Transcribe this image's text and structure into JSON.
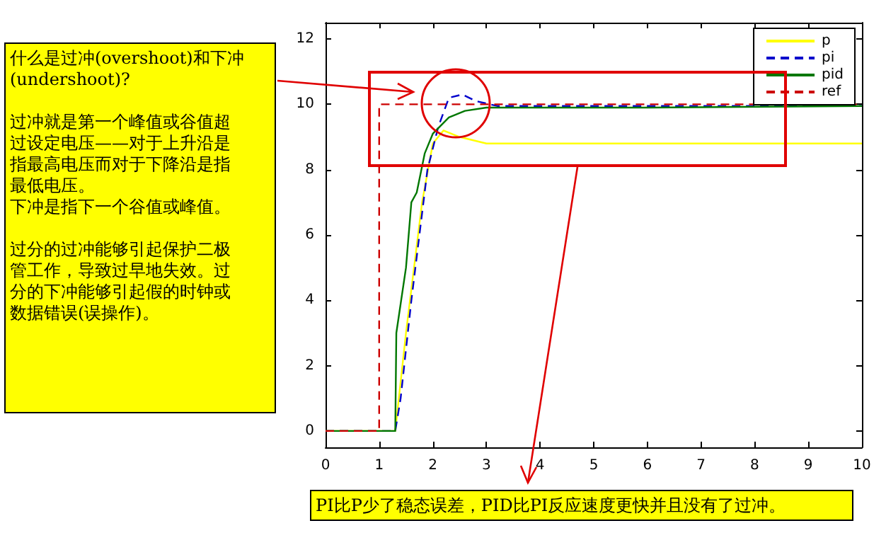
{
  "chart_data": {
    "type": "line",
    "xlim": [
      0,
      10
    ],
    "xticks": [
      0,
      1,
      2,
      3,
      4,
      5,
      6,
      7,
      8,
      9,
      10
    ],
    "ylim": [
      -0.5,
      12.5
    ],
    "yticks": [
      0,
      2,
      4,
      6,
      8,
      10,
      12
    ],
    "grid": false,
    "legend": "top right",
    "marker": "none",
    "series": [
      {
        "name": "p",
        "color": "#ffff00",
        "line_style": "solid",
        "x": [
          0,
          1.3,
          1.5,
          1.8,
          2.0,
          2.2,
          2.5,
          3,
          4,
          10
        ],
        "values": [
          0,
          0,
          3,
          7,
          8.8,
          9.2,
          9.0,
          8.8,
          8.8,
          8.8
        ]
      },
      {
        "name": "pi",
        "color": "#0000cc",
        "line_style": "dashed",
        "x": [
          0,
          1.3,
          1.4,
          1.6,
          1.9,
          2.1,
          2.3,
          2.55,
          2.8,
          3.2,
          4,
          10
        ],
        "values": [
          0,
          0,
          1,
          4,
          8,
          9.3,
          10.2,
          10.3,
          10.1,
          9.95,
          9.95,
          9.95
        ]
      },
      {
        "name": "pid",
        "color": "#007700",
        "line_style": "solid",
        "x": [
          0,
          1.3,
          1.32,
          1.5,
          1.6,
          1.7,
          1.85,
          2.0,
          2.3,
          2.6,
          3,
          6,
          10
        ],
        "values": [
          0,
          0,
          3,
          5,
          7,
          7.3,
          8.5,
          9.1,
          9.6,
          9.8,
          9.9,
          9.9,
          9.95
        ]
      },
      {
        "name": "ref",
        "color": "#cc0000",
        "line_style": "dashed",
        "x": [
          0,
          1,
          1,
          10
        ],
        "values": [
          0,
          0,
          10,
          10
        ]
      }
    ],
    "annotations": [
      "什么是过冲(overshoot)和下冲(undershoot)?",
      "过冲就是第一个峰值或谷值超过设定电压——对于上升沿是指最高电压而对于下降沿是指最低电压。",
      "下冲是指下一个谷值或峰值。",
      "过分的过冲能够引起保护二极管工作，导致过早地失效。过分的下冲能够引起假的时钟或数据错误(误操作)。",
      "PI比P少了稳态误差，PID比PI反应速度更快并且没有了过冲。"
    ]
  }
}
